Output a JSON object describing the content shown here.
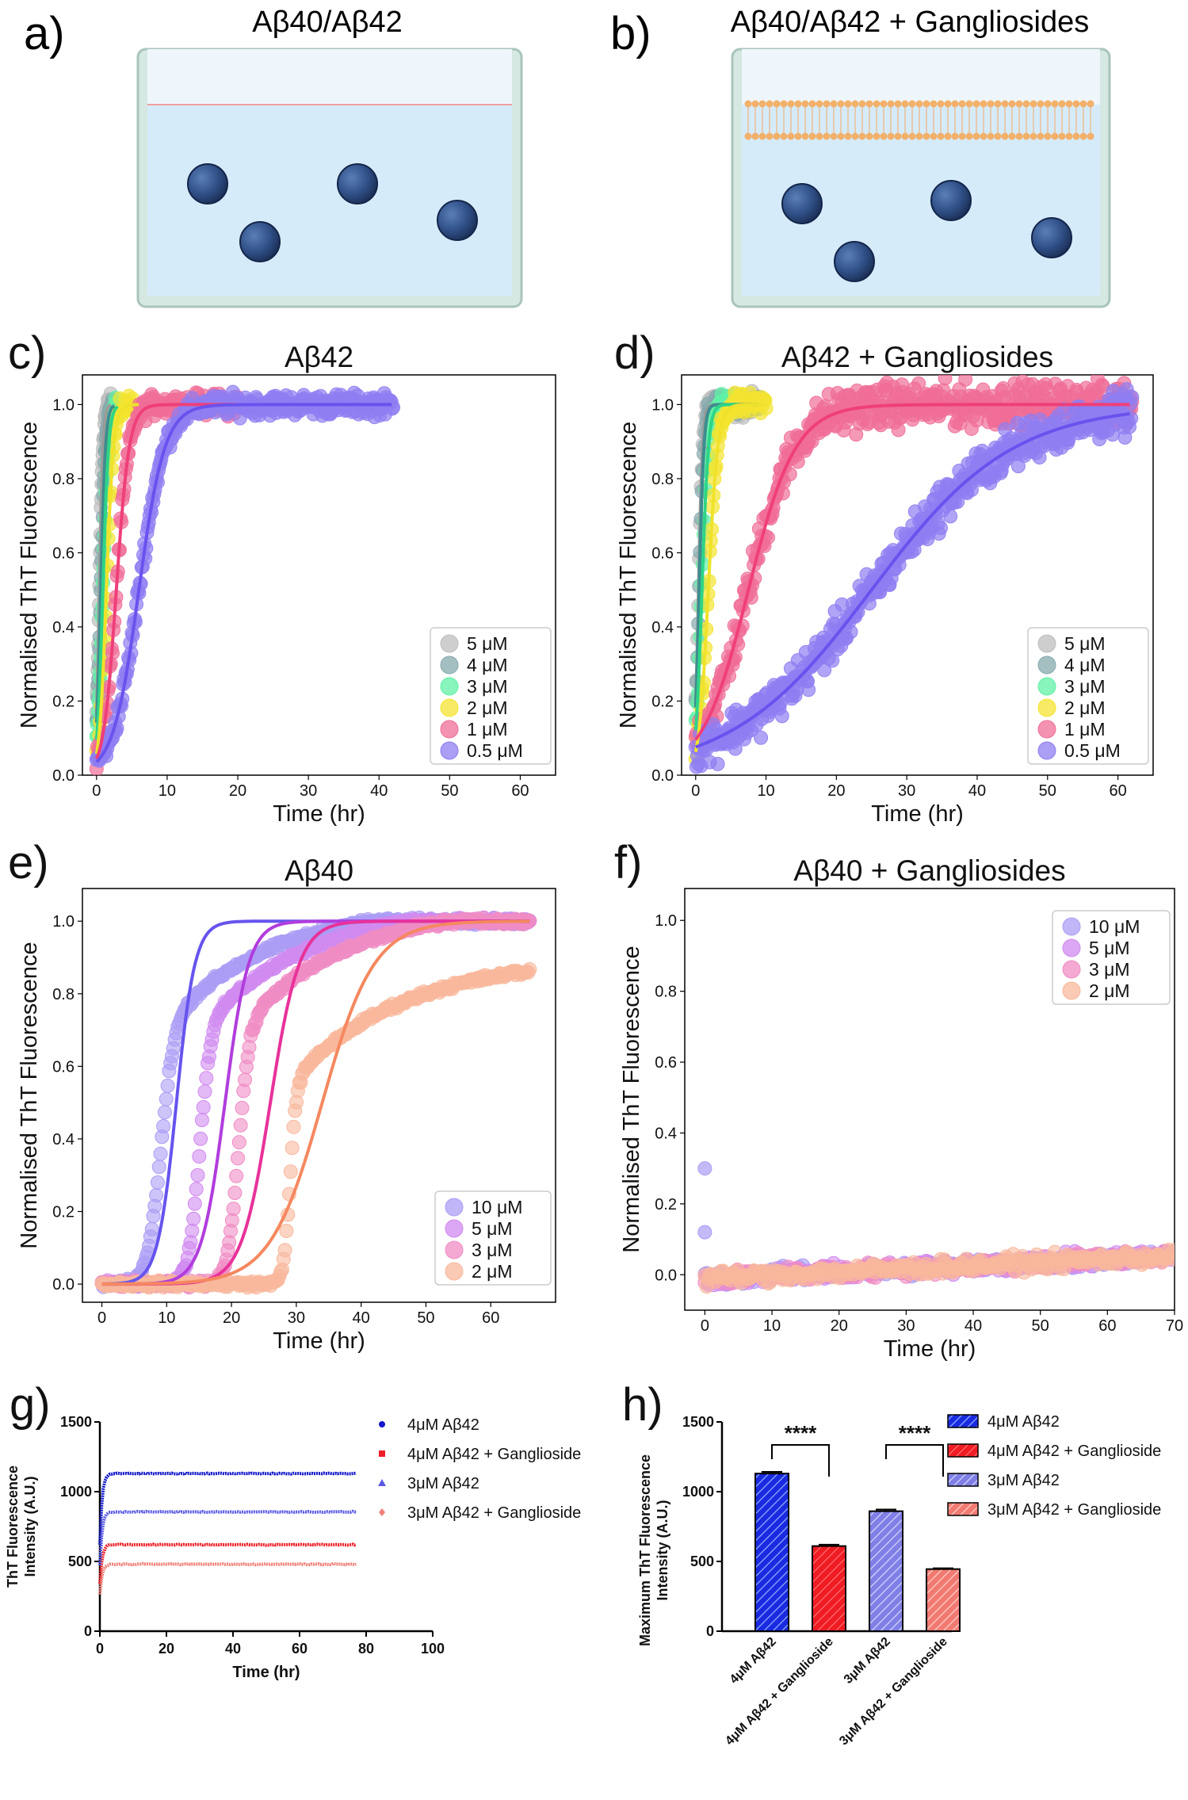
{
  "colors": {
    "c5": "#bdbdbd",
    "c4": "#86a9ad",
    "c3": "#5ff2a6",
    "c2": "#f4e431",
    "c1": "#f06d97",
    "c05": "#8e7ef2",
    "fit5": "#9a9a9a",
    "fit4": "#3d8c8f",
    "fit3": "#2ed487",
    "fit2": "#efe22a",
    "fit1": "#ef3f79",
    "fit05": "#6a52ee",
    "e10": "#6654ee",
    "e5": "#b13ddd",
    "e3": "#e8329a",
    "e2": "#f5885f",
    "s10": "#ab9df5",
    "s5": "#d08af0",
    "s3": "#f08cc4",
    "s2": "#f9b89c",
    "g4": "#1318c9",
    "g4g": "#ee1f27",
    "g3": "#5a5ae5",
    "g3g": "#f08078",
    "water": "#d6ebfa",
    "air": "#eef6fb",
    "dish": "#d5e8e2",
    "dish_edge": "#a9c4bb",
    "bead": "#2f4f86",
    "lipid": "#f2b06a"
  },
  "panels": {
    "a": {
      "letter": "a)",
      "title": "Aβ40/Aβ42"
    },
    "b": {
      "letter": "b)",
      "title": "Aβ40/Aβ42 + Gangliosides"
    }
  },
  "chart_data": [
    {
      "panel": "c)",
      "type": "scatter",
      "title": "Aβ42",
      "xlabel": "Time (hr)",
      "ylabel": "Normalised ThT Fluorescence",
      "xlim": [
        -2,
        65
      ],
      "ylim": [
        0,
        1.08
      ],
      "xticks": [
        0,
        10,
        20,
        30,
        40,
        50,
        60
      ],
      "yticks": [
        0.0,
        0.2,
        0.4,
        0.6,
        0.8,
        1.0
      ],
      "legend_position": "lower-right",
      "series": [
        {
          "name": "5 μM",
          "color_key": "c5",
          "fit_key": "fit5",
          "t50": 0.4,
          "k": 4.0,
          "xmax": 2.0
        },
        {
          "name": "4 μM",
          "color_key": "c4",
          "fit_key": "fit4",
          "t50": 0.6,
          "k": 3.0,
          "xmax": 2.5
        },
        {
          "name": "3 μM",
          "color_key": "c3",
          "fit_key": "fit3",
          "t50": 0.9,
          "k": 2.5,
          "xmax": 3.0
        },
        {
          "name": "2 μM",
          "color_key": "c2",
          "fit_key": "fit2",
          "t50": 1.4,
          "k": 2.0,
          "xmax": 6.0
        },
        {
          "name": "1 μM",
          "color_key": "c1",
          "fit_key": "fit1",
          "t50": 2.8,
          "k": 1.1,
          "xmax": 20.0
        },
        {
          "name": "0.5 μM",
          "color_key": "c05",
          "fit_key": "fit05",
          "t50": 6.0,
          "k": 0.55,
          "xmax": 42.0
        }
      ]
    },
    {
      "panel": "d)",
      "type": "scatter",
      "title": "Aβ42 + Gangliosides",
      "xlabel": "Time (hr)",
      "ylabel": "Normalised ThT Fluorescence",
      "xlim": [
        -2,
        65
      ],
      "ylim": [
        0,
        1.08
      ],
      "xticks": [
        0,
        10,
        20,
        30,
        40,
        50,
        60
      ],
      "yticks": [
        0.0,
        0.2,
        0.4,
        0.6,
        0.8,
        1.0
      ],
      "legend_position": "lower-right",
      "series": [
        {
          "name": "5 μM",
          "color_key": "c5",
          "fit_key": "fit5",
          "t50": 0.4,
          "k": 3.5,
          "xmax": 9.0
        },
        {
          "name": "4 μM",
          "color_key": "c4",
          "fit_key": "fit4",
          "t50": 0.5,
          "k": 3.0,
          "xmax": 9.0
        },
        {
          "name": "3 μM",
          "color_key": "c3",
          "fit_key": "fit3",
          "t50": 0.9,
          "k": 2.2,
          "xmax": 6.0
        },
        {
          "name": "2 μM",
          "color_key": "c2",
          "fit_key": "fit2",
          "t50": 1.8,
          "k": 1.5,
          "xmax": 10.0
        },
        {
          "name": "1 μM",
          "color_key": "c1",
          "fit_key": "fit1",
          "t50": 7.5,
          "k": 0.3,
          "xmax": 62.0
        },
        {
          "name": "0.5 μM",
          "color_key": "c05",
          "fit_key": "fit05",
          "t50": 25.0,
          "k": 0.1,
          "xmax": 62.0
        }
      ]
    },
    {
      "panel": "e)",
      "type": "scatter",
      "title": "Aβ40",
      "xlabel": "Time (hr)",
      "ylabel": "Normalised ThT Fluorescence",
      "xlim": [
        -3,
        70
      ],
      "ylim": [
        -0.05,
        1.09
      ],
      "xticks": [
        0,
        10,
        20,
        30,
        40,
        50,
        60
      ],
      "yticks": [
        0.0,
        0.2,
        0.4,
        0.6,
        0.8,
        1.0
      ],
      "legend_position": "lower-right",
      "series": [
        {
          "name": "10 μM",
          "color_key": "s10",
          "fit_key": "e10",
          "fit_t50": 11.5,
          "fit_k": 0.7,
          "xmax": 66.0
        },
        {
          "name": "5 μM",
          "color_key": "s5",
          "fit_key": "e5",
          "fit_t50": 19.0,
          "fit_k": 0.55,
          "xmax": 66.0
        },
        {
          "name": "3 μM",
          "color_key": "s3",
          "fit_key": "e3",
          "fit_t50": 26.0,
          "fit_k": 0.45,
          "xmax": 66.0
        },
        {
          "name": "2 μM",
          "color_key": "s2",
          "fit_key": "e2",
          "fit_t50": 34.0,
          "fit_k": 0.25,
          "xmax": 66.0
        }
      ]
    },
    {
      "panel": "f)",
      "type": "scatter",
      "title": "Aβ40 + Gangliosides",
      "xlabel": "Time (hr)",
      "ylabel": "Normalised ThT Fluorescence",
      "xlim": [
        -3,
        70
      ],
      "ylim": [
        -0.1,
        1.09
      ],
      "xticks": [
        0,
        10,
        20,
        30,
        40,
        50,
        60,
        70
      ],
      "yticks": [
        0.0,
        0.2,
        0.4,
        0.6,
        0.8,
        1.0
      ],
      "legend_position": "upper-right",
      "series": [
        {
          "name": "10 μM",
          "color_key": "s10"
        },
        {
          "name": "5 μM",
          "color_key": "s5"
        },
        {
          "name": "3 μM",
          "color_key": "s3"
        },
        {
          "name": "2 μM",
          "color_key": "s2"
        }
      ]
    },
    {
      "panel": "g)",
      "type": "scatter",
      "xlabel": "Time (hr)",
      "ylabel": "ThT Fluorescence\nIntensity (A.U.)",
      "xlim": [
        0,
        100
      ],
      "ylim": [
        0,
        1500
      ],
      "xticks": [
        0,
        20,
        40,
        60,
        80,
        100
      ],
      "yticks": [
        0,
        500,
        1000,
        1500
      ],
      "legend_position": "outside-right",
      "series": [
        {
          "name": "4μM Aβ42",
          "color_key": "g4",
          "marker": "circle",
          "plateau": 1130
        },
        {
          "name": "4μM Aβ42 + Ganglioside",
          "color_key": "g4g",
          "marker": "square",
          "plateau": 620
        },
        {
          "name": "3μM Aβ42",
          "color_key": "g3",
          "marker": "triangle",
          "plateau": 855
        },
        {
          "name": "3μM Aβ42 + Ganglioside",
          "color_key": "g3g",
          "marker": "diamond",
          "plateau": 480
        }
      ]
    },
    {
      "panel": "h)",
      "type": "bar",
      "ylabel": "Maximum ThT Fluorescence\nIntensity (A.U.)",
      "ylim": [
        0,
        1500
      ],
      "yticks": [
        0,
        500,
        1000,
        1500
      ],
      "categories": [
        "4μM Aβ42",
        "4μM Aβ42 + Ganglioside",
        "3μM Aβ42",
        "3μM Aβ42 + Ganglioside"
      ],
      "values": [
        1130,
        610,
        860,
        445
      ],
      "errors": [
        12,
        10,
        12,
        6
      ],
      "color_keys": [
        "g4",
        "g4g",
        "g3",
        "g3g"
      ],
      "significance": [
        "****",
        "****"
      ],
      "legend_position": "outside-right",
      "legend": [
        "4μM Aβ42",
        "4μM Aβ42 + Ganglioside",
        "3μM Aβ42",
        "3μM Aβ42 + Ganglioside"
      ]
    }
  ]
}
